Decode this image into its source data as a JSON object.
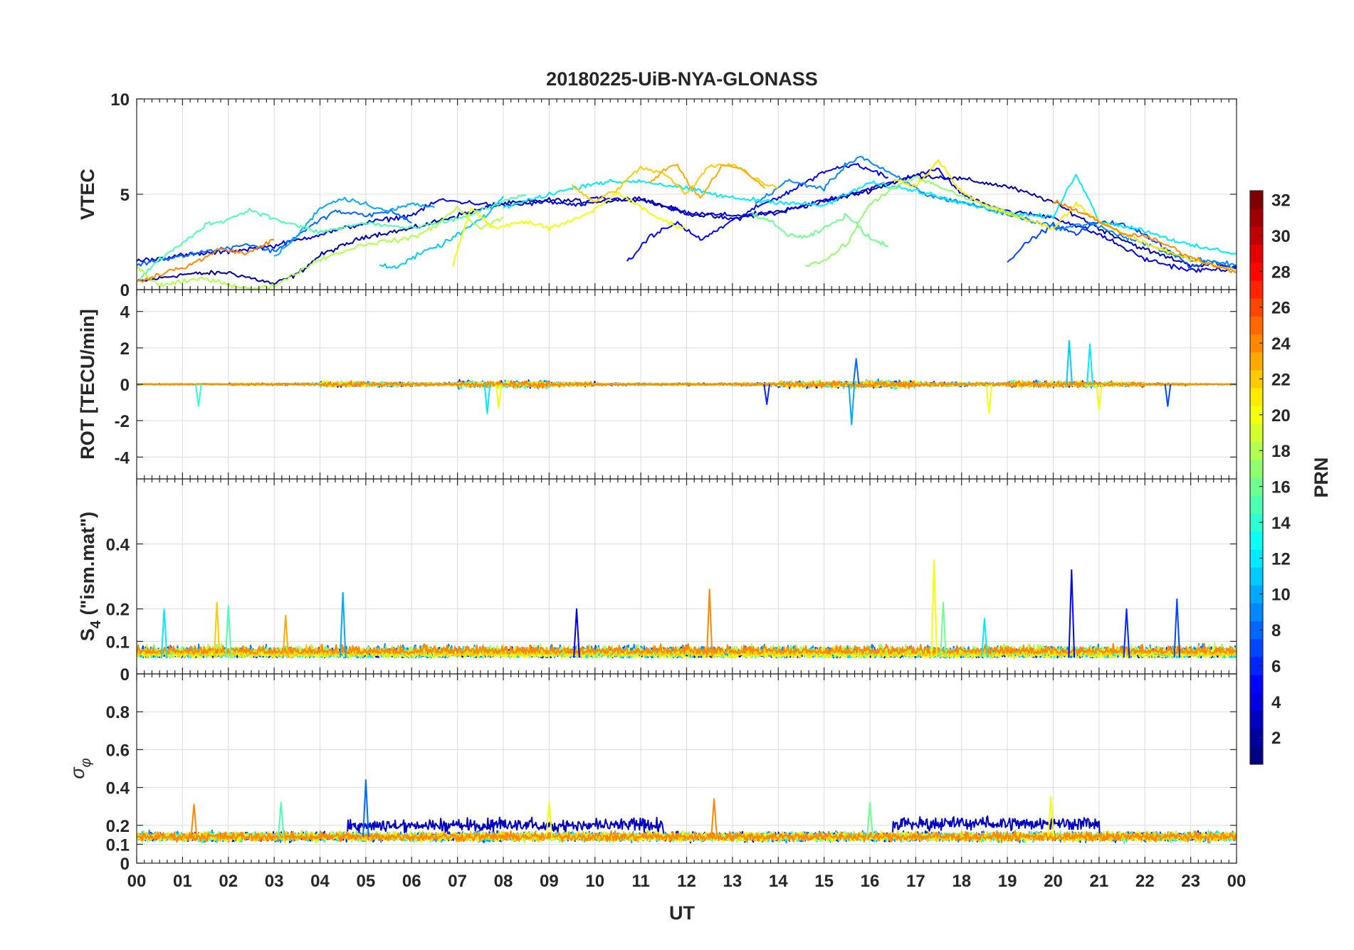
{
  "chart_data": {
    "type": "line",
    "title": "20180225-UiB-NYA-GLONASS",
    "xlabel": "UT",
    "x_range": [
      0,
      24
    ],
    "x_tick_labels": [
      "00",
      "01",
      "02",
      "03",
      "04",
      "05",
      "06",
      "07",
      "08",
      "09",
      "10",
      "11",
      "12",
      "13",
      "14",
      "15",
      "16",
      "17",
      "18",
      "19",
      "20",
      "21",
      "22",
      "23",
      "00"
    ],
    "panels": [
      {
        "id": "vtec",
        "ylabel": "VTEC",
        "ylim": [
          0,
          10
        ],
        "yticks": [
          0,
          5,
          10
        ],
        "ytick_labels": [
          "0",
          "5",
          "10"
        ],
        "series": [
          {
            "prn": 2,
            "x": [
              0,
              1,
              2,
              3,
              3.5,
              4,
              5,
              6,
              7,
              8,
              9,
              10,
              11,
              12,
              13,
              14,
              15,
              16,
              17,
              18,
              19,
              20,
              21,
              22,
              23,
              24
            ],
            "y": [
              0.4,
              0.8,
              0.9,
              0.3,
              0.8,
              1.8,
              2.8,
              3.2,
              3.9,
              4.5,
              4.7,
              4.6,
              4.8,
              4.0,
              3.7,
              4.1,
              4.6,
              5.2,
              6.0,
              5.8,
              5.4,
              4.6,
              3.2,
              2.1,
              1.3,
              1.2
            ]
          },
          {
            "prn": 4,
            "x": [
              0,
              1,
              2,
              3,
              4,
              5,
              6,
              6.6,
              8,
              9,
              9.7,
              10,
              11,
              12,
              13,
              14,
              15,
              16,
              17,
              17.5,
              18,
              19,
              20,
              21,
              22,
              23,
              24
            ],
            "y": [
              1.5,
              1.8,
              2.0,
              2.3,
              2.9,
              3.5,
              3.9,
              4.7,
              4.4,
              4.6,
              4.4,
              4.8,
              4.7,
              4.0,
              3.9,
              4.0,
              4.7,
              5.3,
              6.0,
              6.3,
              5.0,
              4.1,
              3.8,
              2.9,
              1.6,
              1.0,
              1.1
            ]
          },
          {
            "prn": 5,
            "x": [
              10.7,
              11.2,
              11.8,
              12.3,
              13.0,
              13.6,
              14.3,
              15.0,
              15.7,
              16.4
            ],
            "y": [
              1.4,
              2.8,
              3.5,
              2.6,
              3.6,
              4.4,
              5.2,
              6.2,
              6.6,
              5.9
            ]
          },
          {
            "prn": 7,
            "x": [
              19.0,
              19.5,
              20.0,
              20.5,
              21.0,
              21.5,
              22.0,
              22.5,
              23.0,
              23.5,
              24.0
            ],
            "y": [
              1.5,
              2.6,
              3.4,
              2.9,
              3.6,
              3.4,
              2.9,
              2.1,
              1.2,
              1.4,
              1.1
            ]
          },
          {
            "prn": 8,
            "x": [
              0,
              0.6,
              1.2,
              1.8,
              2.4,
              3.0,
              3.6,
              4.3,
              5.0,
              5.6,
              6.0
            ],
            "y": [
              1.3,
              1.6,
              1.9,
              2.1,
              2.4,
              2.0,
              3.0,
              4.1,
              3.9,
              4.1,
              3.5
            ]
          },
          {
            "prn": 9,
            "x": [
              13.5,
              14.2,
              15.0,
              15.5,
              15.8,
              16.2,
              16.8,
              17.3,
              18.0,
              18.6,
              19.4,
              20.2,
              20.8,
              21.5,
              22.2,
              23.0,
              24.0
            ],
            "y": [
              4.5,
              5.7,
              5.3,
              6.6,
              7.0,
              6.4,
              5.6,
              4.9,
              4.6,
              4.2,
              3.7,
              3.2,
              3.5,
              2.8,
              2.2,
              1.6,
              1.3
            ]
          },
          {
            "prn": 10,
            "x": [
              3.0,
              3.5,
              4.0,
              4.5,
              5.0,
              5.5,
              6.0,
              6.5
            ],
            "y": [
              1.7,
              2.8,
              4.3,
              4.8,
              4.5,
              4.1,
              4.5,
              4.3
            ]
          },
          {
            "prn": 11,
            "x": [
              5.3,
              5.7,
              6.2,
              6.7,
              7.2,
              7.7,
              8.0
            ],
            "y": [
              1.3,
              1.2,
              1.9,
              2.4,
              3.2,
              4.0,
              4.9
            ]
          },
          {
            "prn": 12,
            "x": [
              8.0,
              9.0,
              10.0,
              11.0,
              12.0,
              13.0,
              14.0,
              15.0,
              16.0,
              17.0,
              18.0,
              19.0,
              20.0,
              20.5,
              21.0,
              22.0,
              23.0,
              24.0
            ],
            "y": [
              4.3,
              5.0,
              5.6,
              5.7,
              5.3,
              4.8,
              4.6,
              4.4,
              5.6,
              5.2,
              4.6,
              4.0,
              3.8,
              6.1,
              3.6,
              3.1,
              2.3,
              1.9
            ]
          },
          {
            "prn": 15,
            "x": [
              0,
              0.5,
              1.0,
              1.5,
              2.0,
              2.5,
              3.0,
              4.0,
              5.0,
              6.0,
              7.0,
              8.0,
              8.5
            ],
            "y": [
              0.4,
              1.6,
              2.4,
              3.4,
              3.7,
              4.2,
              3.7,
              3.0,
              3.5,
              3.2,
              3.7,
              4.6,
              5.0
            ]
          },
          {
            "prn": 16,
            "x": [
              13.4,
              13.8,
              14.2,
              14.6,
              15.0,
              15.5,
              16.0,
              16.4
            ],
            "y": [
              4.0,
              3.6,
              2.9,
              2.7,
              3.2,
              3.9,
              2.7,
              2.3
            ]
          },
          {
            "prn": 17,
            "x": [
              14.6,
              15.0,
              15.5,
              16.0,
              16.5,
              17.0,
              17.5,
              18.0,
              18.7,
              19.2
            ],
            "y": [
              1.3,
              1.5,
              2.4,
              4.5,
              5.3,
              5.9,
              5.4,
              4.9,
              4.3,
              3.9
            ]
          },
          {
            "prn": 18,
            "x": [
              0,
              0.5,
              1.0,
              1.5,
              2.0,
              2.5,
              3.0,
              3.5,
              4.0,
              5.0,
              6.0,
              6.5,
              7.0,
              7.5,
              8.0
            ],
            "y": [
              1.2,
              0.2,
              0.4,
              0.6,
              0.3,
              0.0,
              0.2,
              0.9,
              1.6,
              2.4,
              2.7,
              3.3,
              4.3,
              3.2,
              3.8
            ]
          },
          {
            "prn": 20,
            "x": [
              6.9,
              7.3,
              7.8,
              8.5,
              9.0,
              9.5,
              10.0,
              10.5,
              11.0,
              11.5,
              12.0
            ],
            "y": [
              1.3,
              4.3,
              3.2,
              3.6,
              3.2,
              3.6,
              4.2,
              5.1,
              4.3,
              3.6,
              3.2
            ]
          },
          {
            "prn": 21,
            "x": [
              16.5,
              17.0,
              17.5,
              18.0,
              18.5,
              19.0,
              19.5,
              20.0,
              20.5,
              21.0,
              22.0,
              23.0,
              24.0
            ],
            "y": [
              5.8,
              5.4,
              6.8,
              5.1,
              4.4,
              4.0,
              3.6,
              3.2,
              4.5,
              3.6,
              2.4,
              1.6,
              1.0
            ]
          },
          {
            "prn": 22,
            "x": [
              9.5,
              10.0,
              10.5,
              11.0,
              11.5,
              12.0,
              12.5,
              13.0,
              13.5,
              14.0
            ],
            "y": [
              5.4,
              4.6,
              5.3,
              6.4,
              6.1,
              5.0,
              6.5,
              6.6,
              5.8,
              5.3
            ]
          },
          {
            "prn": 23,
            "x": [
              11.2,
              11.5,
              11.8,
              12.0,
              12.3,
              12.8,
              13.3,
              13.7
            ],
            "y": [
              5.6,
              6.3,
              6.6,
              5.7,
              4.8,
              6.6,
              6.2,
              5.3
            ]
          },
          {
            "prn": 24,
            "x": [
              0,
              0.6,
              1.2,
              1.8,
              2.4,
              3.0
            ],
            "y": [
              0.4,
              0.9,
              1.3,
              2.1,
              1.9,
              2.6
            ]
          },
          {
            "prn": 24,
            "x": [
              20.0,
              20.5,
              21.0,
              21.5,
              22.0,
              22.5,
              23.0,
              23.5,
              24.0
            ],
            "y": [
              4.6,
              4.2,
              3.6,
              2.9,
              2.8,
              2.3,
              1.7,
              1.3,
              0.9
            ]
          }
        ]
      },
      {
        "id": "rot",
        "ylabel": "ROT [TECU/min]",
        "ylim": [
          -5.2,
          5.2
        ],
        "yticks": [
          -4,
          -2,
          0,
          2,
          4
        ],
        "ytick_labels": [
          "-4",
          "-2",
          "0",
          "2",
          "4"
        ],
        "baseline": 0,
        "noise_scale": [
          0.05,
          0.05,
          0.1,
          0.1,
          0.25,
          0.2,
          0.15,
          0.3,
          0.35,
          0.2,
          0.1,
          0.1,
          0.1,
          0.15,
          0.3,
          0.3,
          0.35,
          0.2,
          0.15,
          0.3,
          0.3,
          0.2,
          0.1,
          0.05,
          0.05
        ],
        "spikes": [
          {
            "x": 1.35,
            "y": -1.2,
            "prn": 14
          },
          {
            "x": 7.65,
            "y": -1.6,
            "prn": 12
          },
          {
            "x": 7.9,
            "y": -1.3,
            "prn": 20
          },
          {
            "x": 13.75,
            "y": -1.1,
            "prn": 6
          },
          {
            "x": 15.6,
            "y": -2.2,
            "prn": 10
          },
          {
            "x": 15.7,
            "y": 1.4,
            "prn": 8
          },
          {
            "x": 18.6,
            "y": -1.6,
            "prn": 20
          },
          {
            "x": 20.35,
            "y": 2.4,
            "prn": 11
          },
          {
            "x": 20.8,
            "y": 2.2,
            "prn": 12
          },
          {
            "x": 22.5,
            "y": -1.2,
            "prn": 7
          },
          {
            "x": 21.0,
            "y": -1.4,
            "prn": 20
          }
        ]
      },
      {
        "id": "s4",
        "ylabel": "S_4 (\"ism.mat\")",
        "ylabel_main": "S",
        "ylabel_sub": "4",
        "ylabel_rest": " (\"ism.mat\")",
        "ylim": [
          0,
          0.6
        ],
        "yticks": [
          0,
          0.1,
          0.2,
          0.4
        ],
        "ytick_labels": [
          "0",
          "0.1",
          "0.2",
          "0.4"
        ],
        "baseline": 0.05,
        "spikes": [
          {
            "x": 4.5,
            "y": 0.25,
            "prn": 10
          },
          {
            "x": 12.5,
            "y": 0.26,
            "prn": 24
          },
          {
            "x": 17.4,
            "y": 0.35,
            "prn": 20
          },
          {
            "x": 20.4,
            "y": 0.32,
            "prn": 5
          },
          {
            "x": 21.6,
            "y": 0.2,
            "prn": 6
          },
          {
            "x": 22.7,
            "y": 0.23,
            "prn": 7
          },
          {
            "x": 9.6,
            "y": 0.2,
            "prn": 4
          },
          {
            "x": 1.75,
            "y": 0.22,
            "prn": 22
          },
          {
            "x": 2.0,
            "y": 0.21,
            "prn": 15
          },
          {
            "x": 0.6,
            "y": 0.2,
            "prn": 12
          },
          {
            "x": 3.25,
            "y": 0.18,
            "prn": 23
          },
          {
            "x": 18.5,
            "y": 0.17,
            "prn": 12
          },
          {
            "x": 17.6,
            "y": 0.22,
            "prn": 16
          }
        ]
      },
      {
        "id": "sigma_phi",
        "ylabel": "σ_φ",
        "ylabel_main": "σ",
        "ylabel_sub": "φ",
        "ylim": [
          0,
          1.0
        ],
        "yticks": [
          0,
          0.1,
          0.2,
          0.4,
          0.6,
          0.8
        ],
        "ytick_labels": [
          "0",
          "0.1",
          "0.2",
          "0.4",
          "0.6",
          "0.8"
        ],
        "baseline": 0.14,
        "spikes": [
          {
            "x": 1.25,
            "y": 0.31,
            "prn": 24
          },
          {
            "x": 3.15,
            "y": 0.32,
            "prn": 15
          },
          {
            "x": 5.0,
            "y": 0.44,
            "prn": 8
          },
          {
            "x": 9.0,
            "y": 0.32,
            "prn": 20
          },
          {
            "x": 12.6,
            "y": 0.34,
            "prn": 24
          },
          {
            "x": 16.0,
            "y": 0.32,
            "prn": 16
          },
          {
            "x": 19.95,
            "y": 0.35,
            "prn": 20
          }
        ],
        "elevated_segments": [
          {
            "x0": 4.6,
            "x1": 11.5,
            "y": 0.24,
            "prn": 3
          },
          {
            "x0": 16.5,
            "x1": 21.0,
            "y": 0.25,
            "prn": 3
          }
        ]
      }
    ],
    "colorbar": {
      "label": "PRN",
      "colormap": "jet",
      "range": [
        1,
        32
      ],
      "ticks": [
        2,
        4,
        6,
        8,
        10,
        12,
        14,
        16,
        18,
        20,
        22,
        24,
        26,
        28,
        30,
        32
      ],
      "tick_labels": [
        "2",
        "4",
        "6",
        "8",
        "10",
        "12",
        "14",
        "16",
        "18",
        "20",
        "22",
        "24",
        "26",
        "28",
        "30",
        "32"
      ]
    },
    "grid": true
  }
}
